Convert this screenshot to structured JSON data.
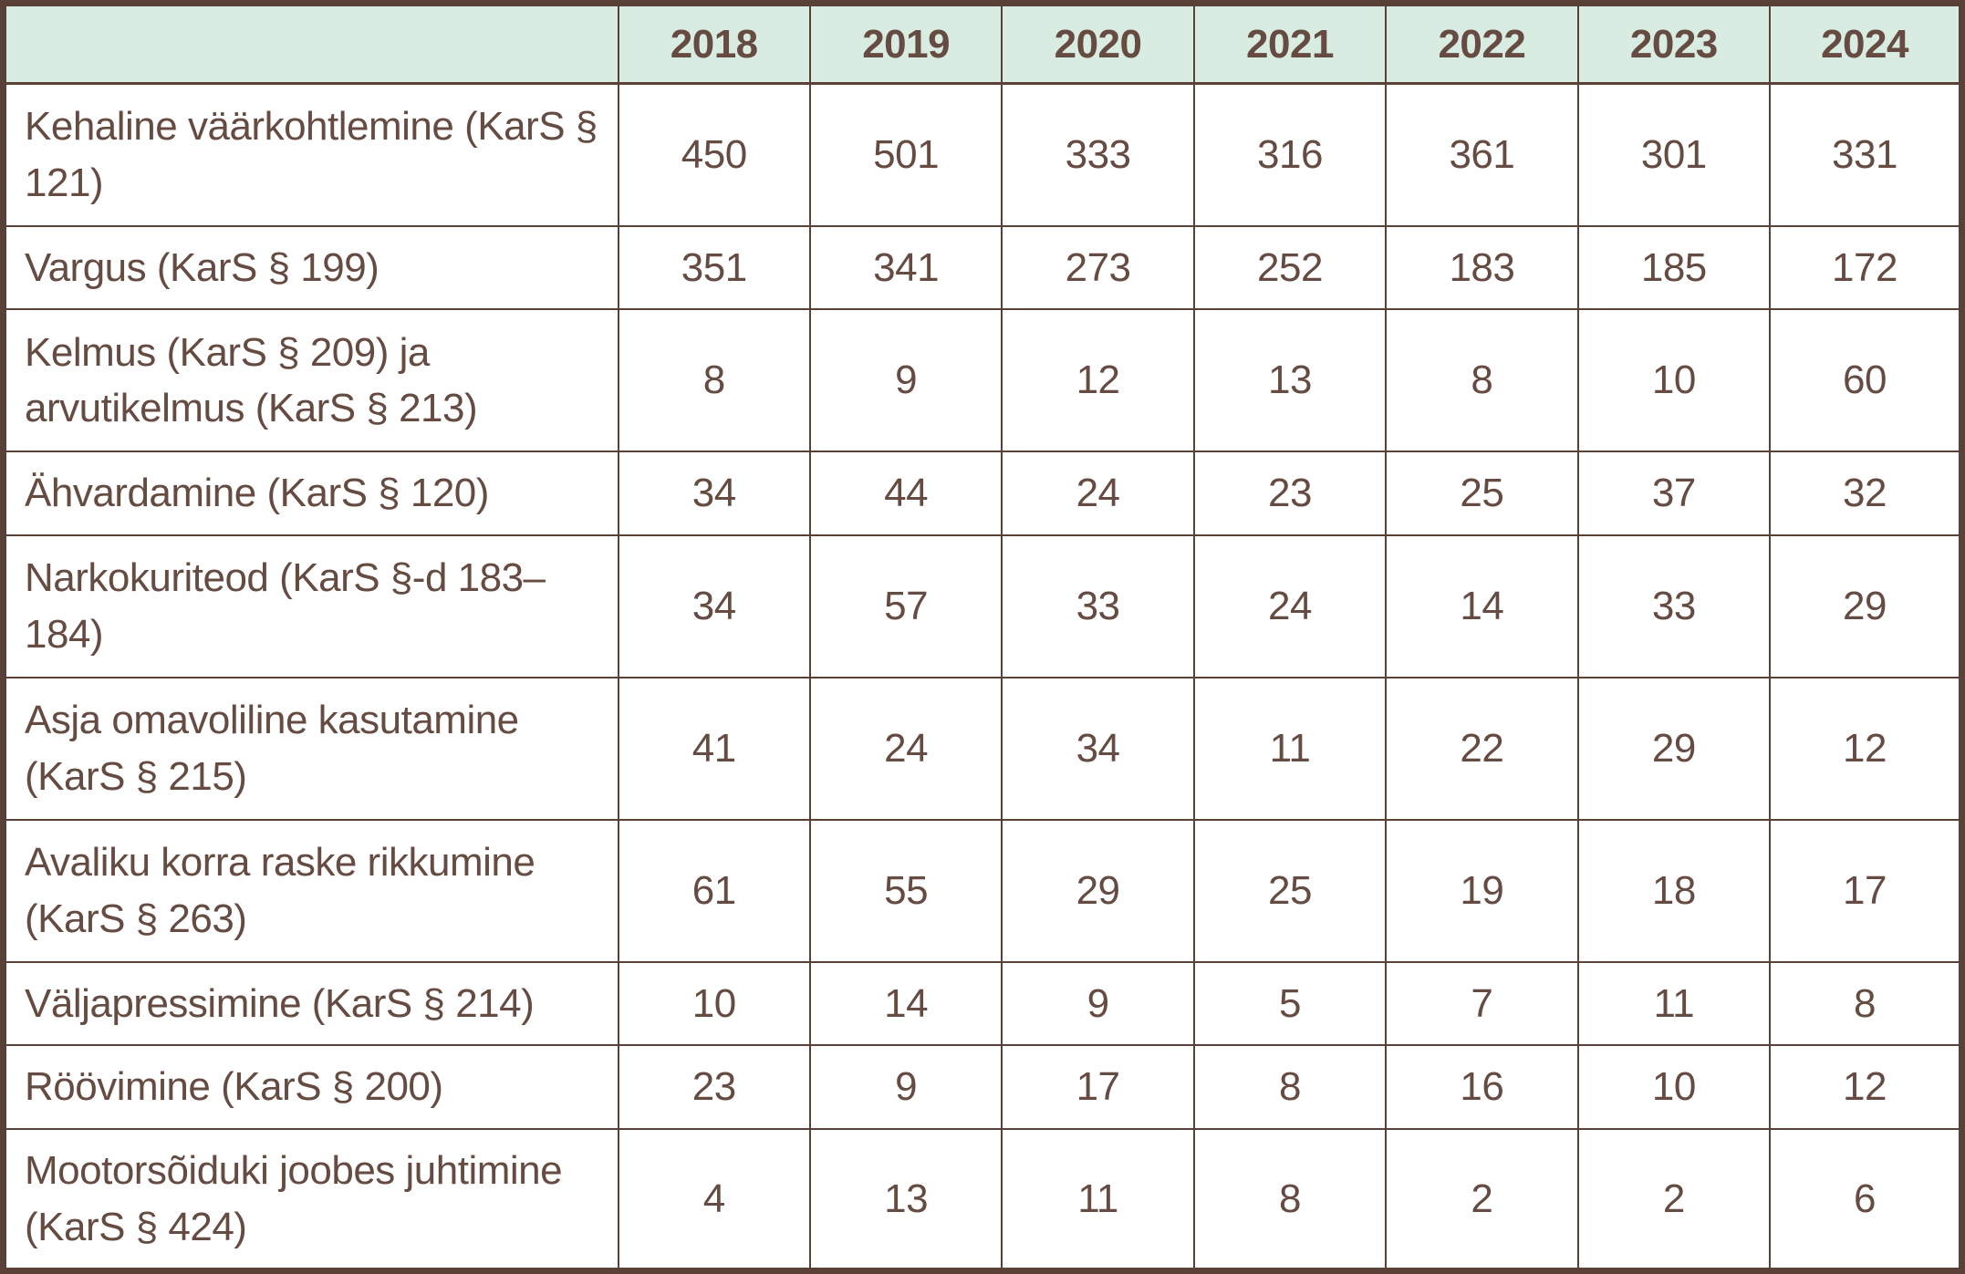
{
  "colors": {
    "border": "#5a4138",
    "text": "#654b41",
    "header_bg": "#d9ece2"
  },
  "table": {
    "columns": [
      "",
      "2018",
      "2019",
      "2020",
      "2021",
      "2022",
      "2023",
      "2024"
    ],
    "rows": [
      {
        "label": "Kehaline väärkohtlemine (KarS § 121)",
        "values": [
          450,
          501,
          333,
          316,
          361,
          301,
          331
        ]
      },
      {
        "label": "Vargus (KarS § 199)",
        "values": [
          351,
          341,
          273,
          252,
          183,
          185,
          172
        ]
      },
      {
        "label": "Kelmus (KarS § 209) ja arvutikelmus (KarS § 213)",
        "values": [
          8,
          9,
          12,
          13,
          8,
          10,
          60
        ]
      },
      {
        "label": "Ähvardamine (KarS § 120)",
        "values": [
          34,
          44,
          24,
          23,
          25,
          37,
          32
        ]
      },
      {
        "label": "Narkokuriteod (KarS §-d 183–184)",
        "values": [
          34,
          57,
          33,
          24,
          14,
          33,
          29
        ]
      },
      {
        "label": "Asja omavoliline kasutamine (KarS § 215)",
        "values": [
          41,
          24,
          34,
          11,
          22,
          29,
          12
        ]
      },
      {
        "label": "Avaliku korra raske rikkumine (KarS § 263)",
        "values": [
          61,
          55,
          29,
          25,
          19,
          18,
          17
        ]
      },
      {
        "label": "Väljapressimine (KarS § 214)",
        "values": [
          10,
          14,
          9,
          5,
          7,
          11,
          8
        ]
      },
      {
        "label": "Röövimine (KarS § 200)",
        "values": [
          23,
          9,
          17,
          8,
          16,
          10,
          12
        ]
      },
      {
        "label": "Mootorsõiduki joobes juhtimine (KarS § 424)",
        "values": [
          4,
          13,
          11,
          8,
          2,
          2,
          6
        ]
      }
    ]
  },
  "chart_data": {
    "type": "table",
    "title": "",
    "categories": [
      "2018",
      "2019",
      "2020",
      "2021",
      "2022",
      "2023",
      "2024"
    ],
    "series": [
      {
        "name": "Kehaline väärkohtlemine (KarS § 121)",
        "values": [
          450,
          501,
          333,
          316,
          361,
          301,
          331
        ]
      },
      {
        "name": "Vargus (KarS § 199)",
        "values": [
          351,
          341,
          273,
          252,
          183,
          185,
          172
        ]
      },
      {
        "name": "Kelmus (KarS § 209) ja arvutikelmus (KarS § 213)",
        "values": [
          8,
          9,
          12,
          13,
          8,
          10,
          60
        ]
      },
      {
        "name": "Ähvardamine (KarS § 120)",
        "values": [
          34,
          44,
          24,
          23,
          25,
          37,
          32
        ]
      },
      {
        "name": "Narkokuriteod (KarS §-d 183–184)",
        "values": [
          34,
          57,
          33,
          24,
          14,
          33,
          29
        ]
      },
      {
        "name": "Asja omavoliline kasutamine (KarS § 215)",
        "values": [
          41,
          24,
          34,
          11,
          22,
          29,
          12
        ]
      },
      {
        "name": "Avaliku korra raske rikkumine (KarS § 263)",
        "values": [
          61,
          55,
          29,
          25,
          19,
          18,
          17
        ]
      },
      {
        "name": "Väljapressimine (KarS § 214)",
        "values": [
          10,
          14,
          9,
          5,
          7,
          11,
          8
        ]
      },
      {
        "name": "Röövimine (KarS § 200)",
        "values": [
          23,
          9,
          17,
          8,
          16,
          10,
          12
        ]
      },
      {
        "name": "Mootorsõiduki joobes juhtimine (KarS § 424)",
        "values": [
          4,
          13,
          11,
          8,
          2,
          2,
          6
        ]
      }
    ]
  }
}
